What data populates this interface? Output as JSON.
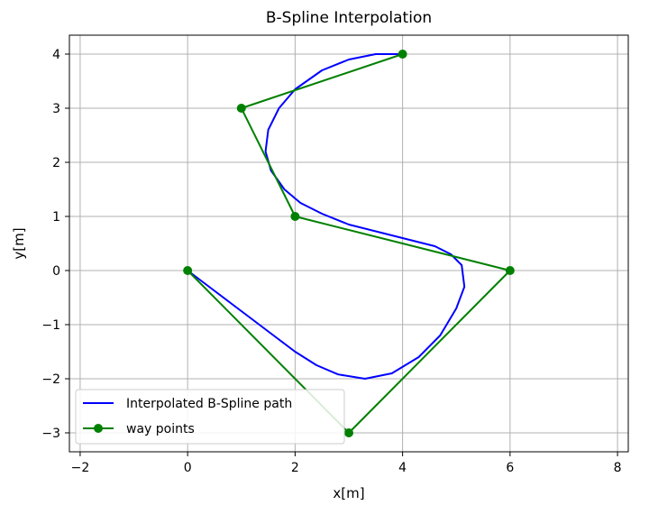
{
  "chart_data": {
    "type": "line",
    "title": "B-Spline Interpolation",
    "xlabel": "x[m]",
    "ylabel": "y[m]",
    "xlim": [
      -2.2,
      8.2
    ],
    "ylim": [
      -3.35,
      4.35
    ],
    "xticks": [
      -2,
      0,
      2,
      4,
      6,
      8
    ],
    "yticks": [
      -3,
      -2,
      -1,
      0,
      1,
      2,
      3,
      4
    ],
    "grid": true,
    "legend_position": "lower-left",
    "series": [
      {
        "name": "Interpolated B-Spline path",
        "color": "#0000ff",
        "marker": "none",
        "x": [
          0,
          0.4,
          0.8,
          1.2,
          1.6,
          2.0,
          2.4,
          2.8,
          3.3,
          3.8,
          4.3,
          4.7,
          5.0,
          5.15,
          5.1,
          4.9,
          4.6,
          4.2,
          3.6,
          3.0,
          2.5,
          2.1,
          1.8,
          1.55,
          1.45,
          1.5,
          1.7,
          2.0,
          2.5,
          3.0,
          3.5,
          4.0
        ],
        "y": [
          0,
          -0.3,
          -0.6,
          -0.9,
          -1.2,
          -1.5,
          -1.75,
          -1.92,
          -2.0,
          -1.9,
          -1.6,
          -1.2,
          -0.7,
          -0.3,
          0.1,
          0.3,
          0.45,
          0.55,
          0.7,
          0.85,
          1.05,
          1.25,
          1.5,
          1.85,
          2.2,
          2.6,
          3.0,
          3.35,
          3.7,
          3.9,
          4.0,
          4.0
        ]
      },
      {
        "name": "way points",
        "color": "#008000",
        "marker": "circle",
        "x": [
          0,
          3,
          6,
          2,
          1,
          4
        ],
        "y": [
          0,
          -3,
          0,
          1,
          3,
          4
        ]
      }
    ]
  }
}
